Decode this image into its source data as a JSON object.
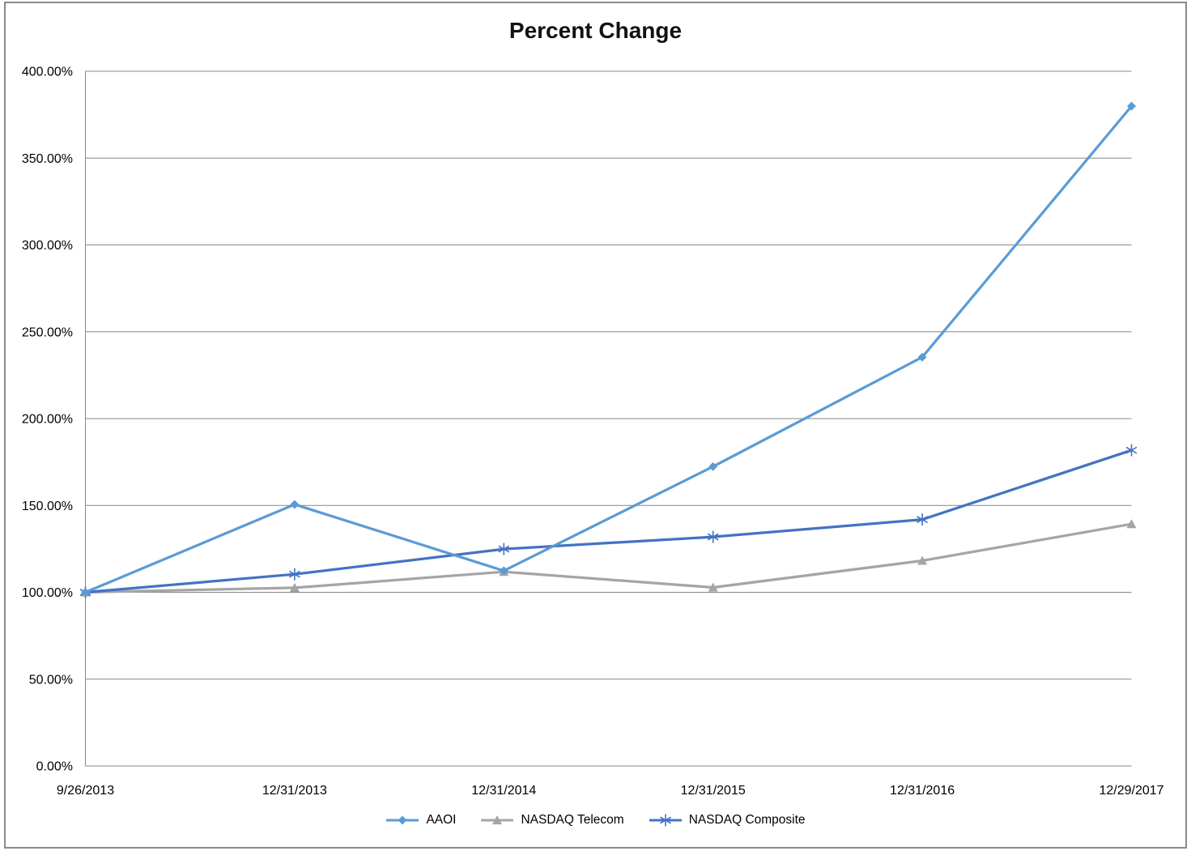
{
  "page": {
    "background_color": "#FFFFFF",
    "frame_border_color": "#8A8A8A"
  },
  "chart_data": {
    "type": "line",
    "title": "Percent Change",
    "xlabel": "",
    "ylabel": "",
    "grid": true,
    "gridline_color": "#878787",
    "axis_color": "#878787",
    "text_color": "#000000",
    "legend_position": "bottom",
    "categories": [
      "9/26/2013",
      "12/31/2013",
      "12/31/2014",
      "12/31/2015",
      "12/31/2016",
      "12/29/2017"
    ],
    "y_axis": {
      "min": 0,
      "max": 400,
      "step": 50,
      "tick_labels": [
        "0.00%",
        "50.00%",
        "100.00%",
        "150.00%",
        "200.00%",
        "250.00%",
        "300.00%",
        "350.00%",
        "400.00%"
      ]
    },
    "series": [
      {
        "name": "NASDAQ Telecom",
        "color": "#A5A5A5",
        "marker": "triangle",
        "values": [
          100,
          102.6,
          111.8,
          102.8,
          118.2,
          139.3
        ]
      },
      {
        "name": "NASDAQ Composite",
        "color": "#4472C4",
        "marker": "asterisk",
        "values": [
          100,
          110.4,
          124.9,
          131.9,
          141.9,
          181.8
        ]
      },
      {
        "name": "AAOI",
        "color": "#5B9BD5",
        "marker": "diamond",
        "values": [
          100,
          150.6,
          112.4,
          172.4,
          235.4,
          379.9
        ]
      }
    ],
    "legend_order": [
      "AAOI",
      "NASDAQ Telecom",
      "NASDAQ Composite"
    ]
  }
}
